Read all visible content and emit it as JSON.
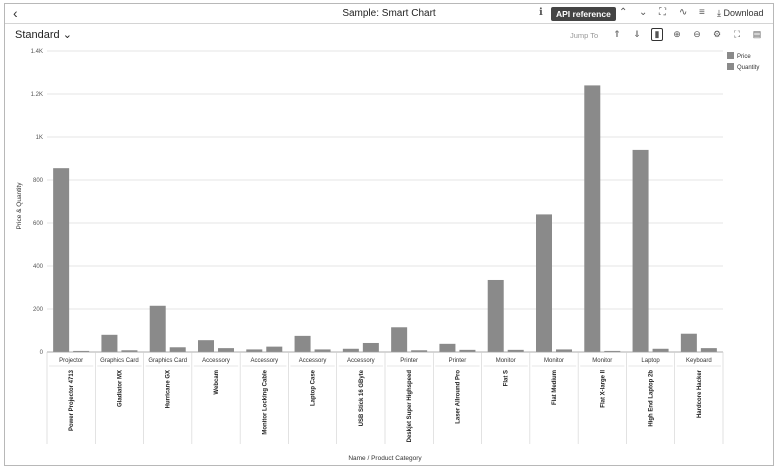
{
  "window": {
    "title": "Sample: Smart Chart"
  },
  "toolbar": {
    "back_icon": "chevron-left-icon",
    "info_icon": "info-icon",
    "api_reference_label": "API reference",
    "download_label": "Download"
  },
  "chart_header": {
    "variant_label": "Standard",
    "jump_to_label": "Jump To"
  },
  "chart_data": {
    "type": "bar",
    "ylabel": "Price & Quantity",
    "xlabel": "Name / Product Category",
    "ylim": [
      0,
      1400
    ],
    "yticks": [
      "0",
      "200",
      "400",
      "600",
      "800",
      "1K",
      "1.2K",
      "1.4K"
    ],
    "yticks_values": [
      0,
      200,
      400,
      600,
      800,
      1000,
      1200,
      1400
    ],
    "grid": true,
    "legend_position": "top-right",
    "categories": [
      {
        "category": "Projector",
        "name": "Power Projector 4713"
      },
      {
        "category": "Graphics Card",
        "name": "Gladiator MX"
      },
      {
        "category": "Graphics Card",
        "name": "Hurricane GX"
      },
      {
        "category": "Accessory",
        "name": "Webcam"
      },
      {
        "category": "Accessory",
        "name": "Monitor Locking Cable"
      },
      {
        "category": "Accessory",
        "name": "Laptop Case"
      },
      {
        "category": "Accessory",
        "name": "USB Stick 16 GByte"
      },
      {
        "category": "Printer",
        "name": "Deskjet Super Highspeed"
      },
      {
        "category": "Printer",
        "name": "Laser Allround Pro"
      },
      {
        "category": "Monitor",
        "name": "Flat S"
      },
      {
        "category": "Monitor",
        "name": "Flat Medium"
      },
      {
        "category": "Monitor",
        "name": "Flat X-large II"
      },
      {
        "category": "Laptop",
        "name": "High End Laptop 2b"
      },
      {
        "category": "Keyboard",
        "name": "Hardcore Hacker"
      }
    ],
    "series": [
      {
        "name": "Price",
        "color": "#8a8a8a",
        "values": [
          855,
          80,
          215,
          55,
          12,
          75,
          15,
          115,
          38,
          335,
          640,
          1240,
          940,
          85
        ]
      },
      {
        "name": "Quantity",
        "color": "#8a8a8a",
        "values": [
          5,
          8,
          22,
          18,
          25,
          12,
          42,
          8,
          10,
          10,
          12,
          5,
          15,
          18
        ]
      }
    ]
  }
}
